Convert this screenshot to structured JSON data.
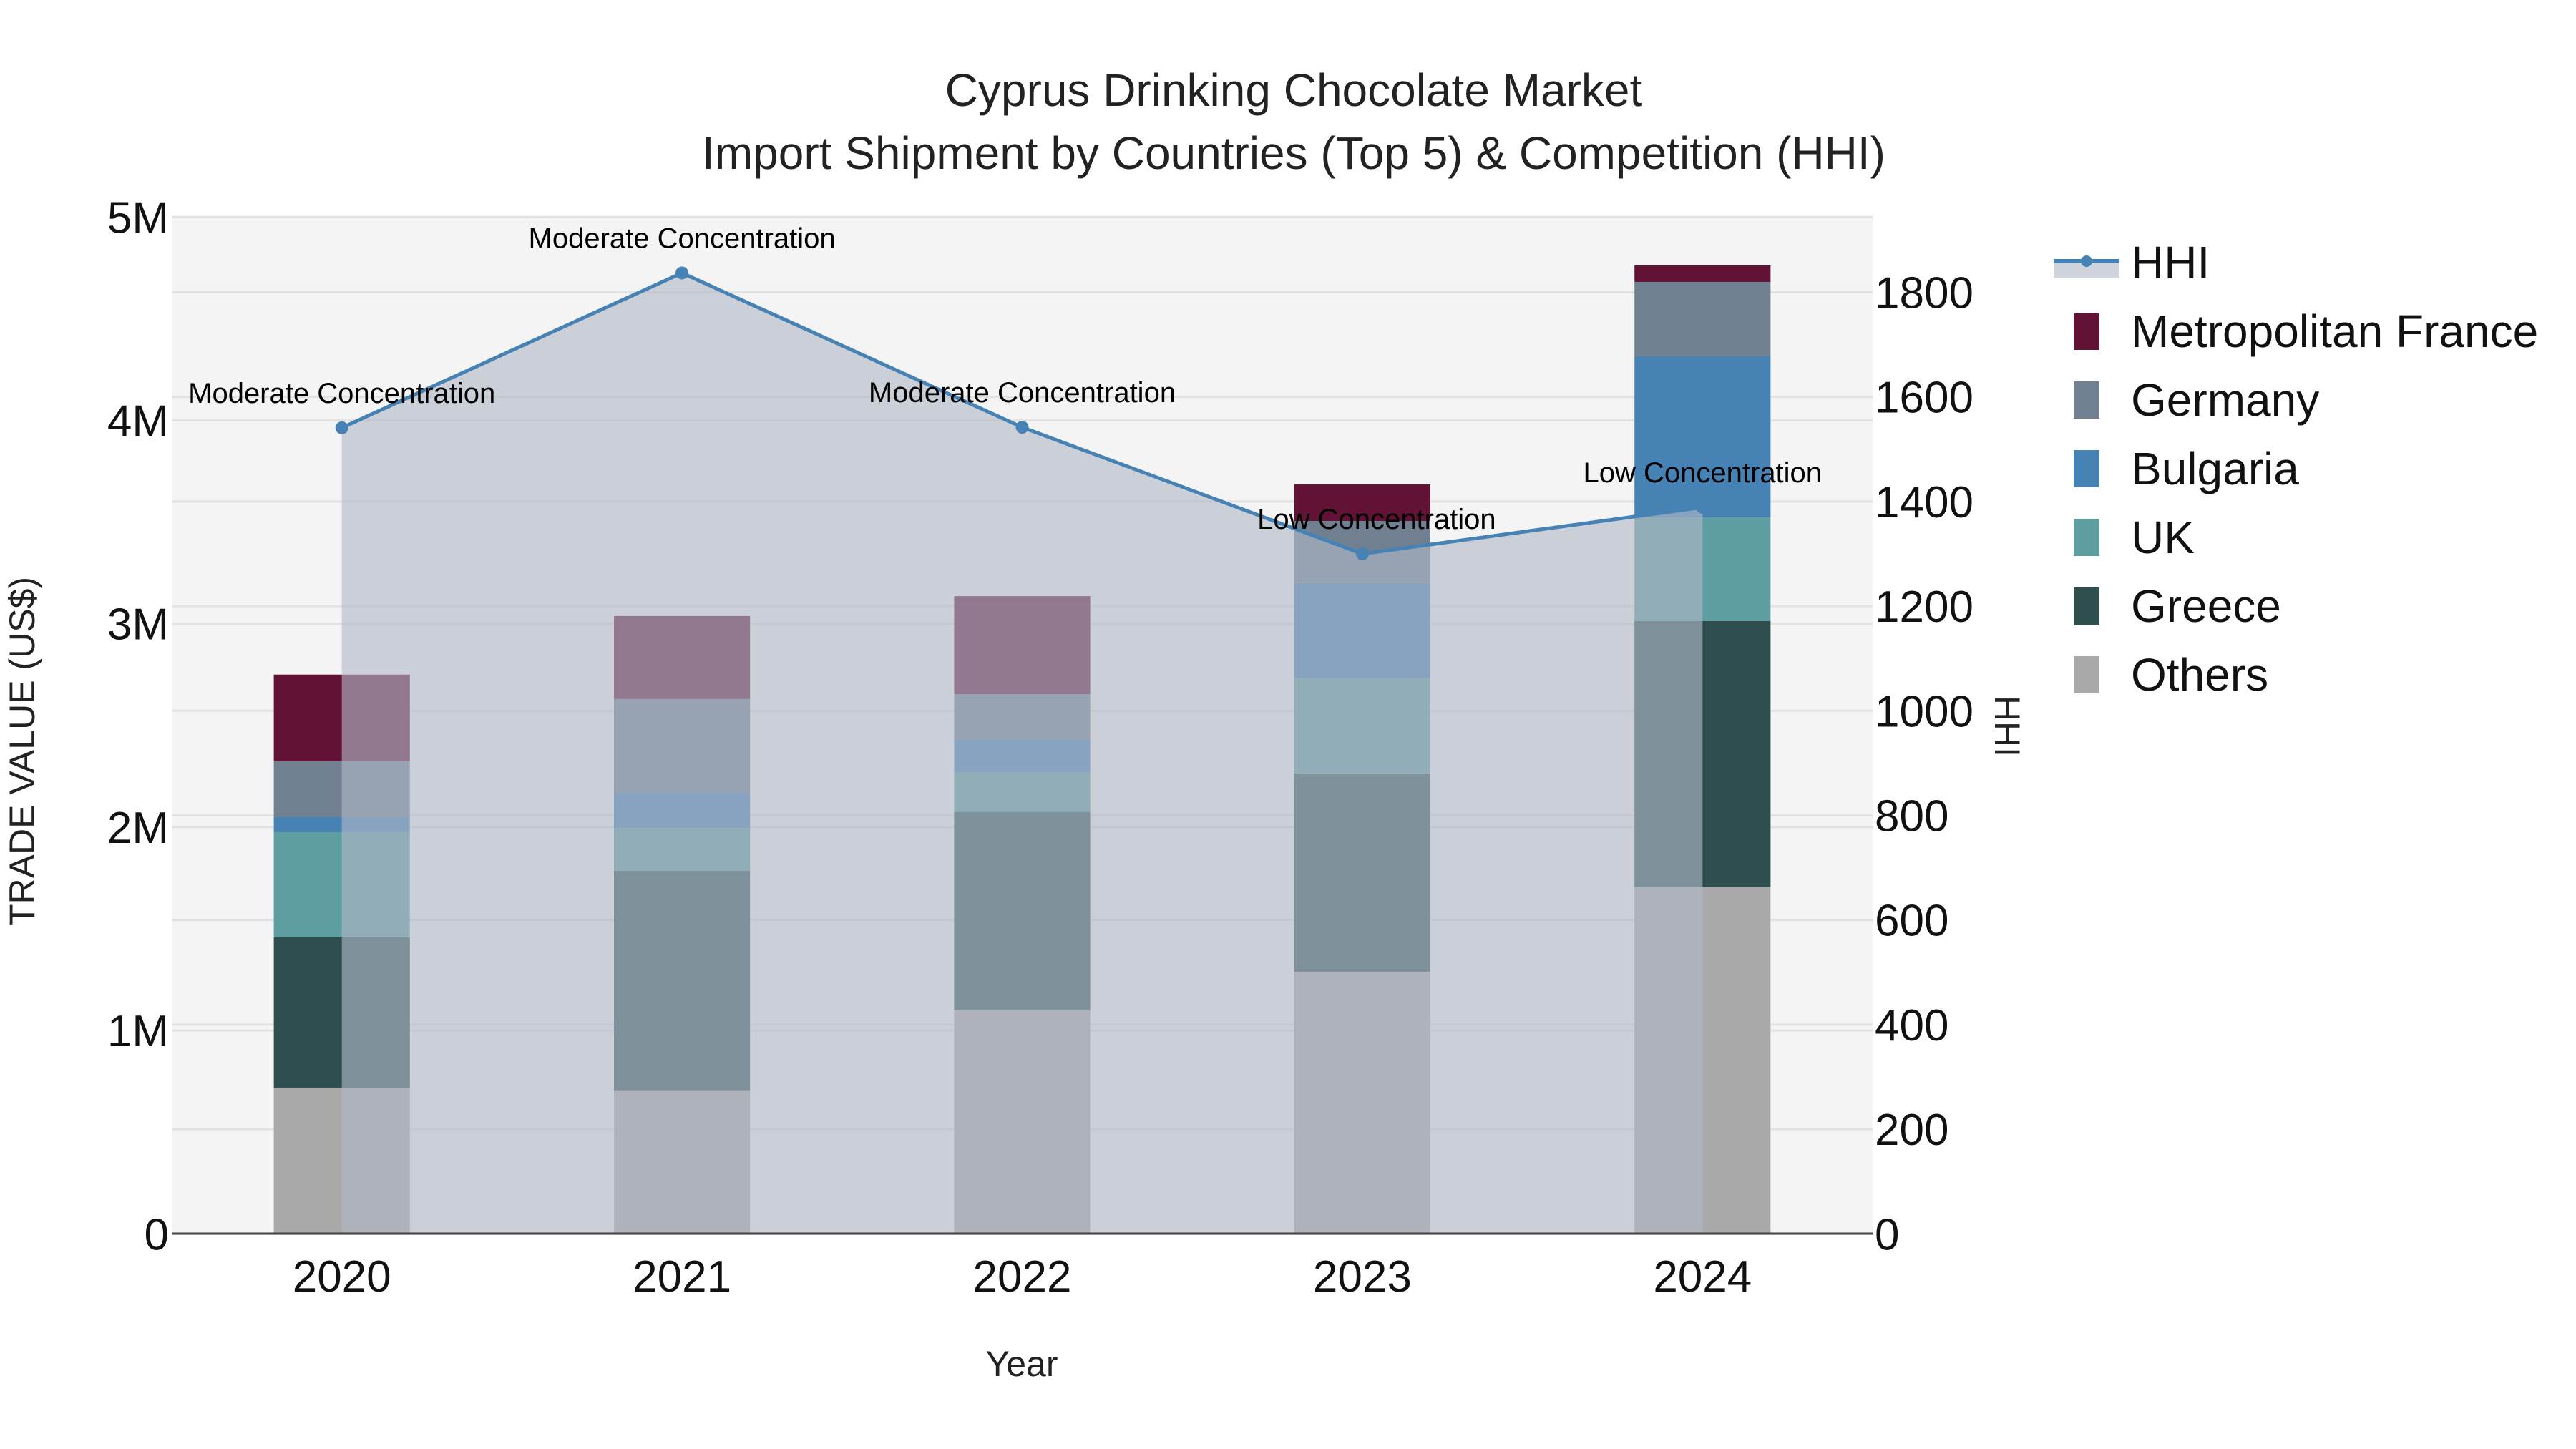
{
  "chart_data": {
    "type": "bar",
    "stacked": true,
    "title": "Cyprus Drinking Chocolate Market",
    "subtitle": "Import Shipment by Countries (Top 5) & Competition (HHI)",
    "xlabel": "Year",
    "ylabel": "TRADE VALUE (US$)",
    "y2label": "HHI",
    "categories": [
      "2020",
      "2021",
      "2022",
      "2023",
      "2024"
    ],
    "ylim": [
      0,
      5000000
    ],
    "y_ticks": [
      0,
      1000000,
      2000000,
      3000000,
      4000000,
      5000000
    ],
    "y_tick_labels": [
      "0",
      "1M",
      "2M",
      "3M",
      "4M",
      "5M"
    ],
    "y2lim": [
      0,
      1950
    ],
    "y2_ticks": [
      0,
      200,
      400,
      600,
      800,
      1000,
      1200,
      1400,
      1600,
      1800
    ],
    "y2_tick_labels": [
      "0",
      "200",
      "400",
      "600",
      "800",
      "1000",
      "1200",
      "1400",
      "1600",
      "1800"
    ],
    "grid": true,
    "legend_position": "right",
    "series": [
      {
        "name": "Others",
        "color": "#a9a9a9",
        "values": [
          719000,
          706000,
          1099000,
          1289000,
          1706000
        ]
      },
      {
        "name": "Greece",
        "color": "#2f4f4f",
        "values": [
          739000,
          1079000,
          976000,
          975000,
          1308000
        ]
      },
      {
        "name": "UK",
        "color": "#5f9ea0",
        "values": [
          517000,
          211000,
          193000,
          469000,
          509000
        ]
      },
      {
        "name": "Bulgaria",
        "color": "#4682b4",
        "values": [
          74000,
          176000,
          161000,
          467000,
          792000
        ]
      },
      {
        "name": "Germany",
        "color": "#708090",
        "values": [
          275000,
          458000,
          225000,
          305000,
          366000
        ]
      },
      {
        "name": "Metropolitan France",
        "color": "#621234",
        "values": [
          426000,
          408000,
          482000,
          180000,
          81000
        ]
      }
    ],
    "line_series": {
      "name": "HHI",
      "axis": "y2",
      "color": "#4682b4",
      "fill_color": "#b0b8c6",
      "values": [
        1541,
        1837,
        1542,
        1300,
        1389
      ],
      "annotations": [
        "Moderate Concentration",
        "Moderate Concentration",
        "Moderate Concentration",
        "Low Concentration",
        "Low Concentration"
      ]
    },
    "legend_order": [
      "HHI",
      "Metropolitan France",
      "Germany",
      "Bulgaria",
      "UK",
      "Greece",
      "Others"
    ]
  }
}
